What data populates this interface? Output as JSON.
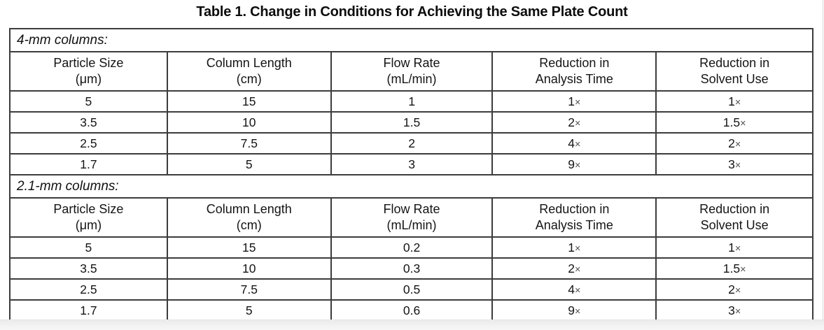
{
  "title": "Table 1. Change in Conditions for Achieving the Same Plate Count",
  "table": {
    "header": {
      "cols": [
        {
          "l1": "Particle Size",
          "l2": "(μm)"
        },
        {
          "l1": "Column Length",
          "l2": "(cm)"
        },
        {
          "l1": "Flow Rate",
          "l2": "(mL/min)"
        },
        {
          "l1": "Reduction in",
          "l2": "Analysis Time"
        },
        {
          "l1": "Reduction in",
          "l2": "Solvent Use"
        }
      ]
    },
    "sections": [
      {
        "label": "4-mm columns:",
        "rows": [
          [
            "5",
            "15",
            "1",
            "1×",
            "1×"
          ],
          [
            "3.5",
            "10",
            "1.5",
            "2×",
            "1.5×"
          ],
          [
            "2.5",
            "7.5",
            "2",
            "4×",
            "2×"
          ],
          [
            "1.7",
            "5",
            "3",
            "9×",
            "3×"
          ]
        ]
      },
      {
        "label": "2.1-mm columns:",
        "rows": [
          [
            "5",
            "15",
            "0.2",
            "1×",
            "1×"
          ],
          [
            "3.5",
            "10",
            "0.3",
            "2×",
            "1.5×"
          ],
          [
            "2.5",
            "7.5",
            "0.5",
            "4×",
            "2×"
          ],
          [
            "1.7",
            "5",
            "0.6",
            "9×",
            "3×"
          ]
        ]
      }
    ]
  },
  "colors": {
    "table_border": "#3c3c3c",
    "text": "#151515",
    "mult_sign": "#505050",
    "bottom_strip": "#f0f0f0"
  }
}
